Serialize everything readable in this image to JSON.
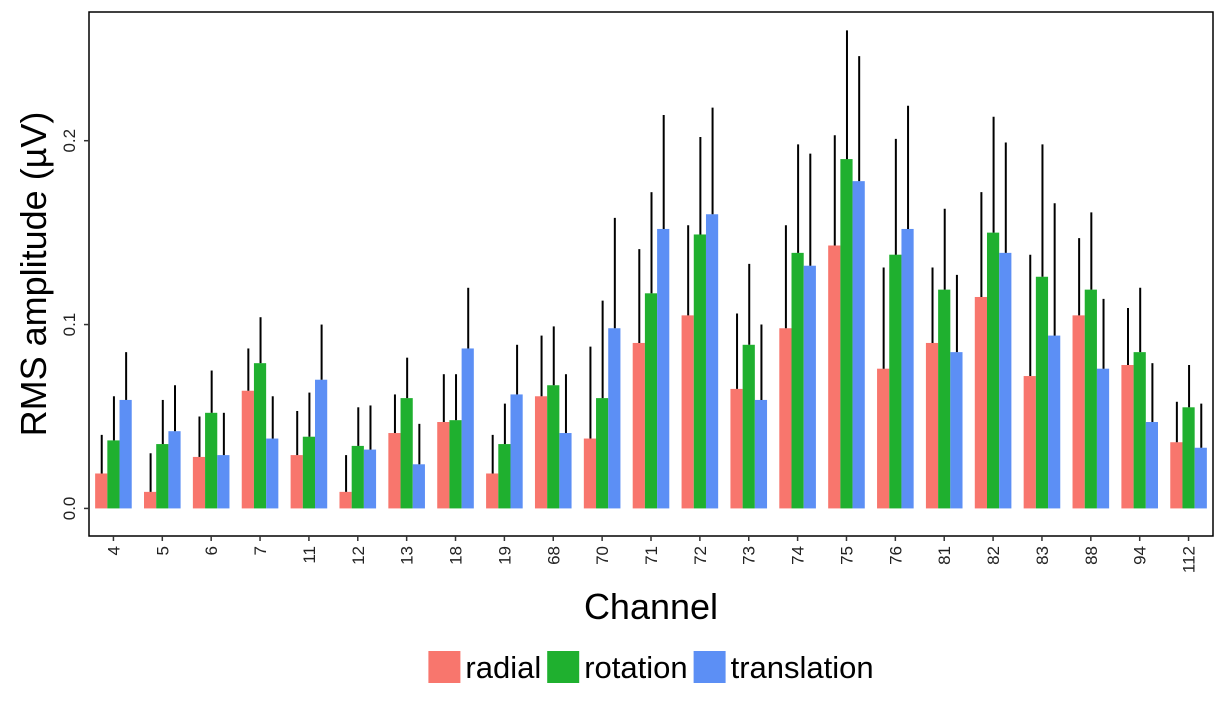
{
  "chart_data": {
    "type": "bar",
    "title": "",
    "xlabel": "Channel",
    "ylabel": "RMS amplitude (µV)",
    "ylim": [
      -0.015,
      0.27
    ],
    "yticks": [
      0.0,
      0.1,
      0.2
    ],
    "ytick_labels": [
      "0.0",
      "0.1",
      "0.2"
    ],
    "grid": false,
    "legend_position": "bottom",
    "categories": [
      "4",
      "5",
      "6",
      "7",
      "11",
      "12",
      "13",
      "18",
      "19",
      "68",
      "70",
      "71",
      "72",
      "73",
      "74",
      "75",
      "76",
      "81",
      "82",
      "83",
      "88",
      "94",
      "112"
    ],
    "series": [
      {
        "name": "radial",
        "color": "#F8766D",
        "values": [
          0.019,
          0.009,
          0.028,
          0.064,
          0.029,
          0.009,
          0.041,
          0.047,
          0.019,
          0.061,
          0.038,
          0.09,
          0.105,
          0.065,
          0.098,
          0.143,
          0.076,
          0.09,
          0.115,
          0.072,
          0.105,
          0.078,
          0.036
        ],
        "errors": [
          0.021,
          0.021,
          0.022,
          0.023,
          0.024,
          0.02,
          0.021,
          0.026,
          0.021,
          0.033,
          0.05,
          0.051,
          0.049,
          0.041,
          0.056,
          0.06,
          0.055,
          0.041,
          0.057,
          0.066,
          0.042,
          0.031,
          0.022
        ]
      },
      {
        "name": "rotation",
        "color": "#1FB02F",
        "values": [
          0.037,
          0.035,
          0.052,
          0.079,
          0.039,
          0.034,
          0.06,
          0.048,
          0.035,
          0.067,
          0.06,
          0.117,
          0.149,
          0.089,
          0.139,
          0.19,
          0.138,
          0.119,
          0.15,
          0.126,
          0.119,
          0.085,
          0.055
        ],
        "errors": [
          0.024,
          0.024,
          0.023,
          0.025,
          0.024,
          0.021,
          0.022,
          0.025,
          0.022,
          0.032,
          0.053,
          0.055,
          0.053,
          0.044,
          0.059,
          0.07,
          0.063,
          0.044,
          0.063,
          0.072,
          0.042,
          0.035,
          0.023
        ]
      },
      {
        "name": "translation",
        "color": "#5C8FF5",
        "values": [
          0.059,
          0.042,
          0.029,
          0.038,
          0.07,
          0.032,
          0.024,
          0.087,
          0.062,
          0.041,
          0.098,
          0.152,
          0.16,
          0.059,
          0.132,
          0.178,
          0.152,
          0.085,
          0.139,
          0.094,
          0.076,
          0.047,
          0.033
        ],
        "errors": [
          0.026,
          0.025,
          0.023,
          0.023,
          0.03,
          0.024,
          0.022,
          0.033,
          0.027,
          0.032,
          0.06,
          0.062,
          0.058,
          0.041,
          0.061,
          0.068,
          0.067,
          0.042,
          0.06,
          0.072,
          0.038,
          0.032,
          0.024
        ]
      }
    ]
  }
}
